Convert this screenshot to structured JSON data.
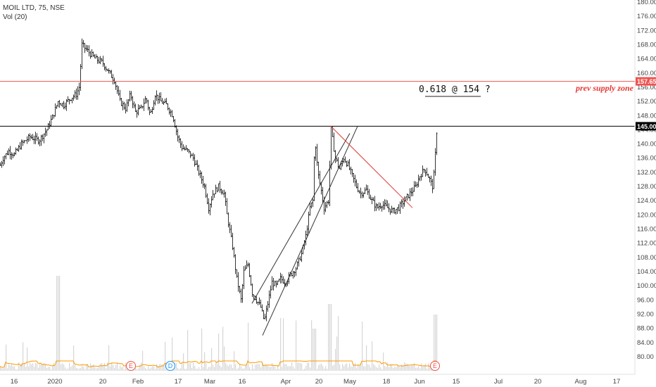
{
  "header": {
    "symbol": "MOIL LTD, 75, NSE",
    "volume": "Vol (20)"
  },
  "chart_data": {
    "type": "candlestick",
    "ylim": [
      78,
      180
    ],
    "y_ticks": [
      "80.00",
      "84.00",
      "88.00",
      "92.00",
      "96.00",
      "100.00",
      "104.00",
      "108.00",
      "112.00",
      "116.00",
      "120.00",
      "124.00",
      "128.00",
      "132.00",
      "136.00",
      "140.00",
      "144.00",
      "148.00",
      "152.00",
      "156.00",
      "160.00",
      "164.00",
      "168.00",
      "172.00",
      "176.00",
      "180.00"
    ],
    "x_ticks": [
      "16",
      "2020",
      "20",
      "Feb",
      "17",
      "Mar",
      "16",
      "Apr",
      "20",
      "May",
      "18",
      "Jun",
      "15",
      "Jul",
      "20",
      "Aug",
      "17"
    ],
    "price_path": [
      {
        "t": 0,
        "v": 134
      },
      {
        "t": 4,
        "v": 136
      },
      {
        "t": 12,
        "v": 138
      },
      {
        "t": 20,
        "v": 137
      },
      {
        "t": 30,
        "v": 140
      },
      {
        "t": 42,
        "v": 142
      },
      {
        "t": 55,
        "v": 141
      },
      {
        "t": 66,
        "v": 144
      },
      {
        "t": 75,
        "v": 148
      },
      {
        "t": 82,
        "v": 152
      },
      {
        "t": 90,
        "v": 151
      },
      {
        "t": 100,
        "v": 153
      },
      {
        "t": 108,
        "v": 154
      },
      {
        "t": 112,
        "v": 156
      },
      {
        "t": 116,
        "v": 168
      },
      {
        "t": 125,
        "v": 166
      },
      {
        "t": 135,
        "v": 164
      },
      {
        "t": 145,
        "v": 163
      },
      {
        "t": 155,
        "v": 160
      },
      {
        "t": 162,
        "v": 158
      },
      {
        "t": 170,
        "v": 152
      },
      {
        "t": 178,
        "v": 150
      },
      {
        "t": 185,
        "v": 154
      },
      {
        "t": 192,
        "v": 149
      },
      {
        "t": 200,
        "v": 150
      },
      {
        "t": 207,
        "v": 153
      },
      {
        "t": 213,
        "v": 148
      },
      {
        "t": 220,
        "v": 154
      },
      {
        "t": 228,
        "v": 152
      },
      {
        "t": 236,
        "v": 151
      },
      {
        "t": 245,
        "v": 148
      },
      {
        "t": 252,
        "v": 142
      },
      {
        "t": 258,
        "v": 139
      },
      {
        "t": 266,
        "v": 138
      },
      {
        "t": 274,
        "v": 136
      },
      {
        "t": 282,
        "v": 132
      },
      {
        "t": 290,
        "v": 128
      },
      {
        "t": 296,
        "v": 122
      },
      {
        "t": 302,
        "v": 126
      },
      {
        "t": 310,
        "v": 128
      },
      {
        "t": 318,
        "v": 126
      },
      {
        "t": 322,
        "v": 120
      },
      {
        "t": 330,
        "v": 111
      },
      {
        "t": 336,
        "v": 102
      },
      {
        "t": 342,
        "v": 96
      },
      {
        "t": 346,
        "v": 104
      },
      {
        "t": 352,
        "v": 106
      },
      {
        "t": 358,
        "v": 98
      },
      {
        "t": 364,
        "v": 96
      },
      {
        "t": 370,
        "v": 94
      },
      {
        "t": 375,
        "v": 90
      },
      {
        "t": 380,
        "v": 95
      },
      {
        "t": 386,
        "v": 101
      },
      {
        "t": 392,
        "v": 100
      },
      {
        "t": 398,
        "v": 102
      },
      {
        "t": 405,
        "v": 101
      },
      {
        "t": 412,
        "v": 103
      },
      {
        "t": 420,
        "v": 105
      },
      {
        "t": 428,
        "v": 109
      },
      {
        "t": 434,
        "v": 114
      },
      {
        "t": 440,
        "v": 122
      },
      {
        "t": 444,
        "v": 124
      },
      {
        "t": 447,
        "v": 142
      },
      {
        "t": 451,
        "v": 132
      },
      {
        "t": 455,
        "v": 128
      },
      {
        "t": 460,
        "v": 122
      },
      {
        "t": 466,
        "v": 124
      },
      {
        "t": 470,
        "v": 144
      },
      {
        "t": 476,
        "v": 136
      },
      {
        "t": 482,
        "v": 133
      },
      {
        "t": 488,
        "v": 136
      },
      {
        "t": 494,
        "v": 134
      },
      {
        "t": 500,
        "v": 131
      },
      {
        "t": 506,
        "v": 128
      },
      {
        "t": 512,
        "v": 126
      },
      {
        "t": 520,
        "v": 127
      },
      {
        "t": 528,
        "v": 124
      },
      {
        "t": 535,
        "v": 122
      },
      {
        "t": 542,
        "v": 123
      },
      {
        "t": 550,
        "v": 122
      },
      {
        "t": 558,
        "v": 121
      },
      {
        "t": 566,
        "v": 122
      },
      {
        "t": 574,
        "v": 124
      },
      {
        "t": 582,
        "v": 126
      },
      {
        "t": 590,
        "v": 128
      },
      {
        "t": 596,
        "v": 131
      },
      {
        "t": 603,
        "v": 133
      },
      {
        "t": 610,
        "v": 130
      },
      {
        "t": 614,
        "v": 128
      },
      {
        "t": 617,
        "v": 133
      },
      {
        "t": 619,
        "v": 141
      },
      {
        "t": 621,
        "v": 146
      }
    ],
    "horizontal_lines": [
      {
        "value": 157.65,
        "label": "157.65",
        "color": "#ef5350"
      },
      {
        "value": 145.0,
        "label": "145.00",
        "color": "#000000"
      }
    ],
    "annotation": "0.618  @  154 ?",
    "zone_label": "prev supply zone",
    "trendlines": [
      {
        "from": {
          "t": 373,
          "v": 86
        },
        "to": {
          "t": 508,
          "v": 145
        },
        "color": "#333333"
      },
      {
        "from": {
          "t": 358,
          "v": 95
        },
        "to": {
          "t": 497,
          "v": 143
        },
        "color": "#333333"
      },
      {
        "from": {
          "t": 470,
          "v": 145
        },
        "to": {
          "t": 586,
          "v": 122
        },
        "color": "#e53935"
      }
    ],
    "events": [
      {
        "t": 186,
        "label": "E",
        "color": "#ef5350"
      },
      {
        "t": 242,
        "label": "D",
        "color": "#2196f3"
      },
      {
        "t": 618,
        "label": "E",
        "color": "#ef5350"
      }
    ],
    "colors": {
      "candle": "#000000",
      "volume": "#d6d6d6",
      "volume_ma": "#ff9800"
    }
  }
}
